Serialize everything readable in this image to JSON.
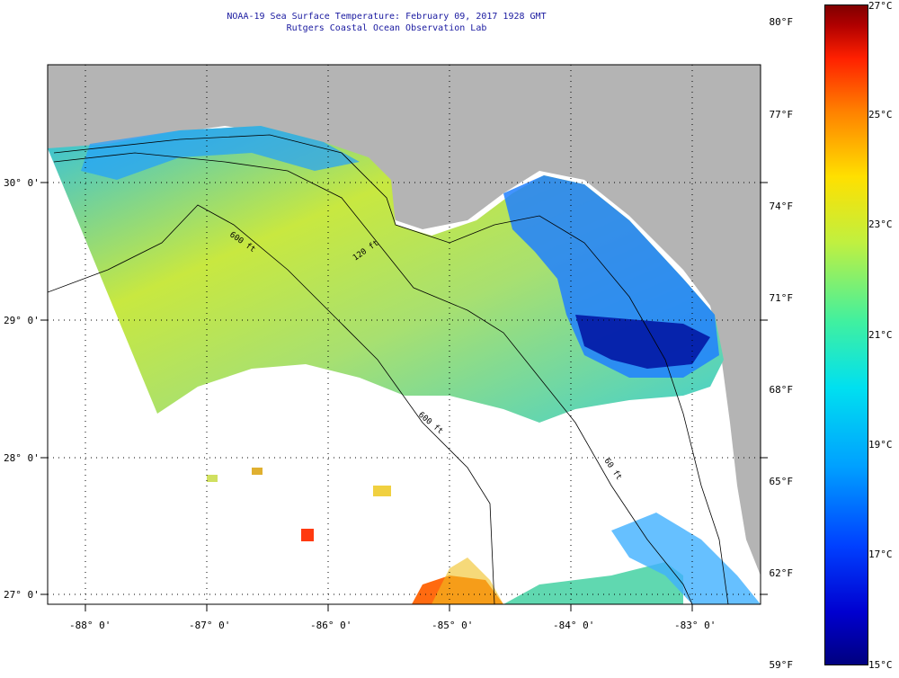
{
  "title_line1": "NOAA-19 Sea Surface Temperature:  February 09, 2017 1928 GMT",
  "title_line2": "Rutgers Coastal Ocean Observation Lab",
  "lat_labels": [
    "30° 0'",
    "29° 0'",
    "28° 0'",
    "27° 0'"
  ],
  "lon_labels": [
    "-88° 0'",
    "-87° 0'",
    "-86° 0'",
    "-85° 0'",
    "-84° 0'",
    "-83° 0'"
  ],
  "isobaths": [
    "600 ft",
    "120 ft",
    "600 ft",
    "60 ft"
  ],
  "colorbar": {
    "fahrenheit": [
      "80°F",
      "77°F",
      "74°F",
      "71°F",
      "68°F",
      "65°F",
      "62°F",
      "59°F"
    ],
    "celsius": [
      "27°C",
      "25°C",
      "23°C",
      "21°C",
      "19°C",
      "17°C",
      "15°C"
    ]
  },
  "colors": {
    "land": "#b4b4b4",
    "cloud": "#ffffff",
    "title": "#1a1aa0"
  }
}
